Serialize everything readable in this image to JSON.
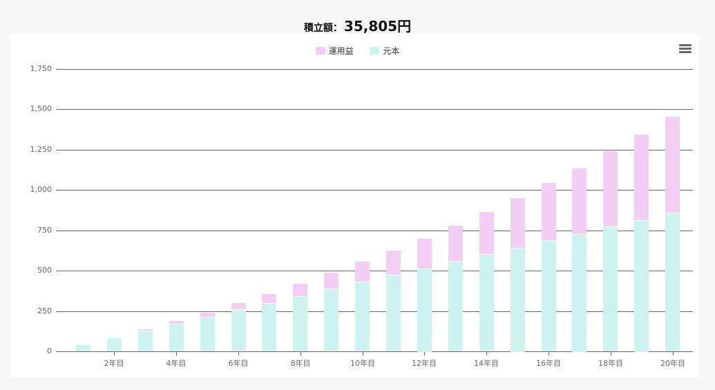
{
  "header": {
    "label": "積立額：",
    "amount": "35,805円"
  },
  "legend": [
    {
      "name": "運用益",
      "color": "#f3cdf3"
    },
    {
      "name": "元本",
      "color": "#cdf3f1"
    }
  ],
  "menu_icon": "hamburger-menu-icon",
  "chart_data": {
    "type": "bar",
    "stacked": true,
    "title": "積立額：35,805円",
    "xlabel": "",
    "ylabel": "",
    "ylim": [
      0,
      1750
    ],
    "yticks": [
      "0",
      "250",
      "500",
      "750",
      "1,000",
      "1,250",
      "1,500",
      "1,750"
    ],
    "categories": [
      "1年目",
      "2年目",
      "3年目",
      "4年目",
      "5年目",
      "6年目",
      "7年目",
      "8年目",
      "9年目",
      "10年目",
      "11年目",
      "12年目",
      "13年目",
      "14年目",
      "15年目",
      "16年目",
      "17年目",
      "18年目",
      "19年目",
      "20年目"
    ],
    "xtick_labels": [
      "2年目",
      "4年目",
      "6年目",
      "8年目",
      "10年目",
      "12年目",
      "14年目",
      "16年目",
      "18年目",
      "20年目"
    ],
    "series": [
      {
        "name": "元本",
        "color": "#cdf3f1",
        "values": [
          43,
          86,
          129,
          172,
          215,
          258,
          301,
          344,
          387,
          430,
          473,
          516,
          559,
          601,
          644,
          687,
          730,
          773,
          816,
          859
        ]
      },
      {
        "name": "運用益",
        "color": "#f3cdf3",
        "values": [
          0,
          1,
          8,
          16,
          26,
          40,
          56,
          75,
          99,
          126,
          151,
          183,
          220,
          262,
          308,
          357,
          406,
          466,
          529,
          596
        ]
      }
    ],
    "grid": true,
    "legend_position": "top"
  }
}
